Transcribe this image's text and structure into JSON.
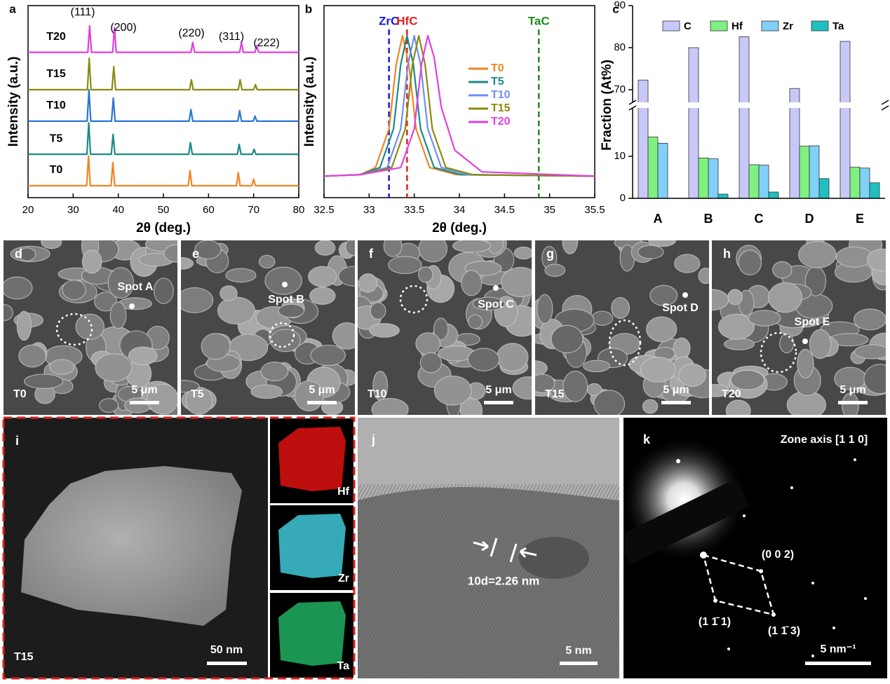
{
  "chart_data": [
    {
      "type": "line",
      "panel": "a",
      "xlabel": "2θ (deg.)",
      "ylabel": "Intensity (a.u.)",
      "xlim": [
        20,
        80
      ],
      "xticks": [
        20,
        30,
        40,
        50,
        60,
        70,
        80
      ],
      "ylim": [
        0,
        5.8
      ],
      "legend": "inline",
      "peak_labels": [
        "(111)",
        "(200)",
        "(220)",
        "(311)",
        "(222)"
      ],
      "series": [
        {
          "name": "T0",
          "color": "#f28522",
          "x": [
            20,
            33.0,
            33.4,
            33.8,
            38.4,
            38.8,
            39.2,
            55.5,
            55.9,
            56.3,
            66.2,
            66.6,
            67.0,
            69.6,
            70.0,
            70.4,
            80
          ],
          "values": [
            0.36,
            0.36,
            1.26,
            0.36,
            0.36,
            1.06,
            0.36,
            0.36,
            0.81,
            0.36,
            0.36,
            0.76,
            0.36,
            0.36,
            0.56,
            0.36,
            0.36
          ]
        },
        {
          "name": "T5",
          "color": "#1a8a87",
          "x": [
            20,
            33.05,
            33.45,
            33.85,
            38.45,
            38.85,
            39.25,
            55.6,
            56.0,
            56.4,
            66.4,
            66.8,
            67.2,
            69.7,
            70.1,
            70.5,
            80
          ],
          "values": [
            1.31,
            1.31,
            2.26,
            1.31,
            1.31,
            1.91,
            1.31,
            1.31,
            1.66,
            1.31,
            1.31,
            1.61,
            1.31,
            1.31,
            1.46,
            1.31,
            1.31
          ]
        },
        {
          "name": "T10",
          "color": "#2a76d2",
          "x": [
            20,
            33.1,
            33.5,
            33.9,
            38.5,
            38.9,
            39.3,
            55.7,
            56.1,
            56.5,
            66.5,
            66.9,
            67.3,
            69.9,
            70.3,
            70.7,
            80
          ],
          "values": [
            2.31,
            2.31,
            3.26,
            2.31,
            2.31,
            3.01,
            2.31,
            2.31,
            2.66,
            2.31,
            2.31,
            2.63,
            2.31,
            2.31,
            2.46,
            2.31,
            2.31
          ]
        },
        {
          "name": "T15",
          "color": "#8a8a10",
          "x": [
            20,
            33.15,
            33.55,
            33.95,
            38.6,
            39.0,
            39.4,
            55.8,
            56.2,
            56.6,
            66.6,
            67.0,
            67.4,
            70.0,
            70.4,
            70.8,
            80
          ],
          "values": [
            3.26,
            3.26,
            4.21,
            3.26,
            3.26,
            3.96,
            3.26,
            3.26,
            3.56,
            3.26,
            3.26,
            3.56,
            3.26,
            3.26,
            3.41,
            3.26,
            3.26
          ]
        },
        {
          "name": "T20",
          "color": "#e040e0",
          "x": [
            20,
            33.25,
            33.65,
            34.05,
            38.75,
            39.15,
            39.55,
            56.1,
            56.5,
            56.9,
            66.9,
            67.3,
            67.7,
            70.3,
            70.7,
            71.1,
            80
          ],
          "values": [
            4.39,
            4.39,
            5.19,
            4.39,
            4.39,
            5.14,
            4.39,
            4.39,
            4.69,
            4.39,
            4.39,
            4.69,
            4.39,
            4.39,
            4.59,
            4.39,
            4.39
          ]
        }
      ]
    },
    {
      "type": "line",
      "panel": "b",
      "xlabel": "2θ (deg.)",
      "ylabel": "Intensity (a.u.)",
      "xlim": [
        32.5,
        35.5
      ],
      "xticks": [
        32.5,
        33,
        33.5,
        34,
        34.5,
        35,
        35.5
      ],
      "ylim": [
        -0.13,
        1.21
      ],
      "legend": "center right",
      "reference_lines": [
        {
          "name": "ZrC",
          "x": 33.22,
          "color": "#1a1adb"
        },
        {
          "name": "HfC",
          "x": 33.42,
          "color": "#e02020"
        },
        {
          "name": "TaC",
          "x": 34.88,
          "color": "#1f8a1f"
        }
      ],
      "series": [
        {
          "name": "T0",
          "color": "#f28522",
          "x": [
            32.5,
            32.9,
            33.07,
            33.22,
            33.3,
            33.37,
            33.44,
            33.52,
            33.67,
            33.97,
            35.5
          ],
          "values": [
            0.02,
            0.03,
            0.08,
            0.35,
            0.8,
            1.0,
            0.8,
            0.35,
            0.08,
            0.03,
            0.02
          ]
        },
        {
          "name": "T5",
          "color": "#1a8a87",
          "x": [
            32.5,
            32.9,
            33.12,
            33.27,
            33.35,
            33.42,
            33.49,
            33.57,
            33.72,
            34.02,
            35.5
          ],
          "values": [
            0.02,
            0.03,
            0.08,
            0.35,
            0.8,
            1.0,
            0.8,
            0.35,
            0.08,
            0.03,
            0.02
          ]
        },
        {
          "name": "T10",
          "color": "#6d8ff0",
          "x": [
            32.5,
            32.9,
            33.2,
            33.35,
            33.43,
            33.5,
            33.57,
            33.65,
            33.8,
            34.1,
            35.5
          ],
          "values": [
            0.02,
            0.03,
            0.08,
            0.35,
            0.8,
            1.0,
            0.8,
            0.35,
            0.08,
            0.03,
            0.02
          ]
        },
        {
          "name": "T15",
          "color": "#8a8a10",
          "x": [
            32.5,
            32.9,
            33.25,
            33.4,
            33.48,
            33.55,
            33.62,
            33.7,
            33.85,
            34.15,
            35.5
          ],
          "values": [
            0.02,
            0.03,
            0.08,
            0.35,
            0.8,
            1.0,
            0.8,
            0.35,
            0.08,
            0.03,
            0.02
          ]
        },
        {
          "name": "T20",
          "color": "#e040e0",
          "x": [
            32.5,
            32.9,
            33.35,
            33.5,
            33.58,
            33.65,
            33.72,
            33.8,
            33.95,
            34.25,
            35.5
          ],
          "values": [
            0.02,
            0.03,
            0.08,
            0.35,
            0.8,
            1.0,
            0.85,
            0.5,
            0.2,
            0.05,
            0.02
          ]
        }
      ]
    },
    {
      "type": "bar",
      "panel": "c",
      "ylabel": "Fraction (At%)",
      "categories": [
        "A",
        "B",
        "C",
        "D",
        "E"
      ],
      "ylim": [
        0,
        90
      ],
      "yticks": [
        0,
        10,
        70,
        80,
        90
      ],
      "axis_break": [
        21.5,
        67
      ],
      "legend": "top",
      "series": [
        {
          "name": "C",
          "color": "#c8c8f8",
          "values": [
            72.3,
            80,
            82.6,
            70.3,
            81.5
          ]
        },
        {
          "name": "Hf",
          "color": "#80f080",
          "values": [
            14.6,
            9.6,
            8.0,
            12.4,
            7.4
          ]
        },
        {
          "name": "Zr",
          "color": "#80d0f8",
          "values": [
            13.1,
            9.4,
            7.9,
            12.5,
            7.2
          ]
        },
        {
          "name": "Ta",
          "color": "#20c0c0",
          "values": [
            0,
            1.0,
            1.5,
            4.7,
            3.7
          ]
        }
      ]
    }
  ],
  "sem_panels": [
    {
      "letter": "d",
      "sample": "T0",
      "spot": "Spot A",
      "scale": "5 μm"
    },
    {
      "letter": "e",
      "sample": "T5",
      "spot": "Spot B",
      "scale": "5 μm"
    },
    {
      "letter": "f",
      "sample": "T10",
      "spot": "Spot C",
      "scale": "5 μm"
    },
    {
      "letter": "g",
      "sample": "T15",
      "spot": "Spot D",
      "scale": "5 μm"
    },
    {
      "letter": "h",
      "sample": "T20",
      "spot": "Spot E",
      "scale": "5 μm"
    }
  ],
  "panel_i": {
    "letter": "i",
    "sample": "T15",
    "scale": "50 nm",
    "maps": [
      "Hf",
      "Zr",
      "Ta"
    ]
  },
  "panel_j": {
    "letter": "j",
    "spacing": "10d=2.26 nm",
    "scale": "5 nm"
  },
  "panel_k": {
    "letter": "k",
    "zone_axis": "Zone axis [1 1 0]",
    "spots": [
      "(0 0 2)",
      "(1 1̄ 1)",
      "(1 1̄ 3)"
    ],
    "scale": "5 nm⁻¹"
  }
}
